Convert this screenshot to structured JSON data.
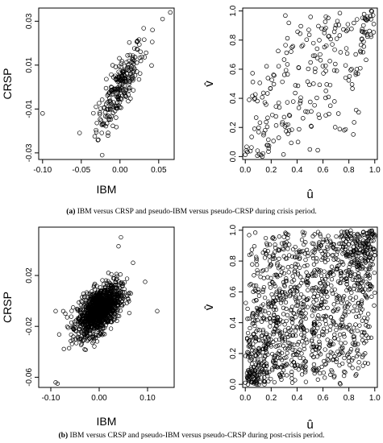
{
  "panels": [
    {
      "id": "a",
      "label": "(a)",
      "text": " IBM versus CRSP and pseudo-IBM versus pseudo-CRSP during crisis period."
    },
    {
      "id": "b",
      "label": "(b)",
      "text": " IBM versus CRSP and pseudo-IBM versus pseudo-CRSP during post-crisis period."
    }
  ],
  "chart_data": [
    {
      "id": "a-left",
      "type": "scatter",
      "xlabel": "IBM",
      "ylabel": "CRSP",
      "xlim": [
        -0.105,
        0.07
      ],
      "ylim": [
        -0.033,
        0.036
      ],
      "xticks": [
        -0.1,
        -0.05,
        0.0,
        0.05
      ],
      "xtick_labels": [
        "-0.10",
        "-0.05",
        "0.00",
        "0.05"
      ],
      "yticks": [
        -0.03,
        -0.01,
        0.01,
        0.03
      ],
      "ytick_labels": [
        "-0.03",
        "-0.01",
        "0.01",
        "0.03"
      ],
      "marker": "open-circle",
      "n_points": 250,
      "distribution": "bivariate, strong positive correlation (~0.8), centered near (0.0, 0.0)",
      "outliers": [
        [
          -0.1,
          -0.012
        ],
        [
          0.065,
          0.034
        ],
        [
          0.055,
          0.031
        ],
        [
          -0.023,
          -0.031
        ],
        [
          -0.028,
          -0.024
        ],
        [
          0.042,
          0.026
        ]
      ],
      "x_sd": 0.015,
      "y_sd": 0.01
    },
    {
      "id": "a-right",
      "type": "scatter",
      "xlabel": "û",
      "ylabel": "v̂",
      "xlim": [
        -0.02,
        1.02
      ],
      "ylim": [
        -0.02,
        1.02
      ],
      "xticks": [
        0.0,
        0.2,
        0.4,
        0.6,
        0.8,
        1.0
      ],
      "xtick_labels": [
        "0.0",
        "0.2",
        "0.4",
        "0.6",
        "0.8",
        "1.0"
      ],
      "yticks": [
        0.0,
        0.2,
        0.4,
        0.6,
        0.8,
        1.0
      ],
      "ytick_labels": [
        "0.0",
        "0.2",
        "0.4",
        "0.6",
        "0.8",
        "1.0"
      ],
      "marker": "open-circle",
      "n_points": 250,
      "distribution": "pseudo-observations on unit square, positive dependence",
      "dependence": 0.65
    },
    {
      "id": "b-left",
      "type": "scatter",
      "xlabel": "IBM",
      "ylabel": "CRSP",
      "xlim": [
        -0.125,
        0.155
      ],
      "ylim": [
        -0.068,
        0.058
      ],
      "xticks": [
        -0.1,
        0.0,
        0.1
      ],
      "xtick_labels": [
        "-0.10",
        "0.00",
        "0.10"
      ],
      "yticks": [
        -0.06,
        -0.02,
        0.02
      ],
      "ytick_labels": [
        "-0.06",
        "-0.02",
        "0.02"
      ],
      "marker": "open-circle",
      "n_points": 1300,
      "distribution": "bivariate, dense elliptical cloud, moderate positive correlation (~0.55), centered near (0.0, -0.007)",
      "outliers": [
        [
          -0.086,
          -0.065
        ],
        [
          -0.09,
          -0.064
        ],
        [
          0.12,
          -0.008
        ],
        [
          0.095,
          0.015
        ],
        [
          0.045,
          0.05
        ],
        [
          0.04,
          0.043
        ],
        [
          -0.07,
          -0.01
        ],
        [
          -0.09,
          -0.008
        ],
        [
          0.07,
          0.03
        ]
      ],
      "x_sd": 0.022,
      "y_sd": 0.01
    },
    {
      "id": "b-right",
      "type": "scatter",
      "xlabel": "û",
      "ylabel": "v̂",
      "xlim": [
        -0.02,
        1.02
      ],
      "ylim": [
        -0.02,
        1.02
      ],
      "xticks": [
        0.0,
        0.2,
        0.4,
        0.6,
        0.8,
        1.0
      ],
      "xtick_labels": [
        "0.0",
        "0.2",
        "0.4",
        "0.6",
        "0.8",
        "1.0"
      ],
      "yticks": [
        0.0,
        0.2,
        0.4,
        0.6,
        0.8,
        1.0
      ],
      "ytick_labels": [
        "0.0",
        "0.2",
        "0.4",
        "0.6",
        "0.8",
        "1.0"
      ],
      "marker": "open-circle",
      "n_points": 1300,
      "distribution": "pseudo-observations on unit square, dense, moderate positive dependence with tail clustering near (0,0) and (1,1)",
      "dependence": 0.45,
      "vertical_gap_at_u": 0.5
    }
  ]
}
